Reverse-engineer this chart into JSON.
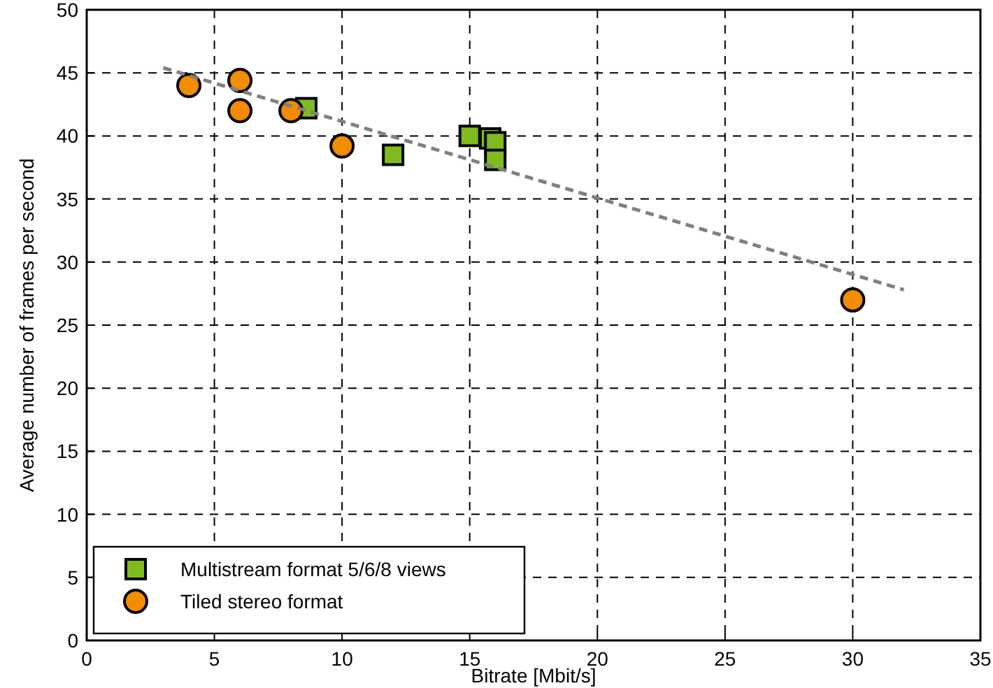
{
  "chart_data": {
    "type": "scatter",
    "xlabel": "Bitrate [Mbit/s]",
    "ylabel": "Average number of frames per second",
    "xlim": [
      0,
      35
    ],
    "xticks": [
      0,
      5,
      10,
      15,
      20,
      25,
      30,
      35
    ],
    "ylim": [
      0,
      50
    ],
    "yticks": [
      0,
      5,
      10,
      15,
      20,
      25,
      30,
      35,
      40,
      45,
      50
    ],
    "grid": true,
    "legend": "bottom left",
    "series": [
      {
        "name": "Multistream format 5/6/8 views",
        "color": "#80bb1e",
        "marker": "square",
        "x": [
          8.6,
          12,
          15,
          15.8,
          16,
          16
        ],
        "values": [
          42.2,
          38.5,
          40,
          39.8,
          39.5,
          38.1
        ]
      },
      {
        "name": "Tiled stereo format",
        "color": "#f28c00",
        "marker": "circle",
        "x": [
          4,
          6,
          6,
          8,
          10,
          30
        ],
        "values": [
          44,
          44.4,
          42,
          42,
          39.2,
          27
        ]
      },
      {
        "type": "line",
        "color": "#808080",
        "line_style": "dashed",
        "marker": "none",
        "x": [
          3,
          32
        ],
        "values": [
          45.4,
          27.8
        ]
      }
    ]
  }
}
